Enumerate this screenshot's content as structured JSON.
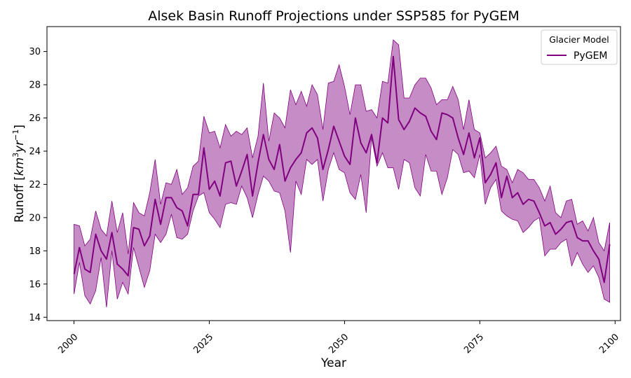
{
  "chart_data": {
    "type": "line",
    "title": "Alsek Basin Runoff Projections under SSP585 for PyGEM",
    "xlabel": "Year",
    "ylabel_main": "Runoff [",
    "ylabel_unit": "km",
    "ylabel_unit_sup": "3",
    "ylabel_unit2": "yr",
    "ylabel_unit2_sup": "−1",
    "ylabel_close": "]",
    "xlim": [
      1995,
      2101
    ],
    "ylim": [
      13.8,
      31.5
    ],
    "xticks": [
      2000,
      2025,
      2050,
      2075,
      2100
    ],
    "yticks": [
      14,
      16,
      18,
      20,
      22,
      24,
      26,
      28,
      30
    ],
    "grid": false,
    "legend_title": "Glacier Model",
    "legend_position": "top-right",
    "color": "#800080",
    "band_color": "#a040a0",
    "series": [
      {
        "name": "PyGEM",
        "x": [
          2000,
          2001,
          2002,
          2003,
          2004,
          2005,
          2006,
          2007,
          2008,
          2009,
          2010,
          2011,
          2012,
          2013,
          2014,
          2015,
          2016,
          2017,
          2018,
          2019,
          2020,
          2021,
          2022,
          2023,
          2024,
          2025,
          2026,
          2027,
          2028,
          2029,
          2030,
          2031,
          2032,
          2033,
          2034,
          2035,
          2036,
          2037,
          2038,
          2039,
          2040,
          2041,
          2042,
          2043,
          2044,
          2045,
          2046,
          2047,
          2048,
          2049,
          2050,
          2051,
          2052,
          2053,
          2054,
          2055,
          2056,
          2057,
          2058,
          2059,
          2060,
          2061,
          2062,
          2063,
          2064,
          2065,
          2066,
          2067,
          2068,
          2069,
          2070,
          2071,
          2072,
          2073,
          2074,
          2075,
          2076,
          2077,
          2078,
          2079,
          2080,
          2081,
          2082,
          2083,
          2084,
          2085,
          2086,
          2087,
          2088,
          2089,
          2090,
          2091,
          2092,
          2093,
          2094,
          2095,
          2096,
          2097,
          2098,
          2099
        ],
        "mean": [
          16.6,
          18.2,
          16.9,
          16.7,
          19.0,
          18.0,
          17.5,
          19.1,
          17.2,
          16.9,
          16.5,
          19.4,
          19.3,
          18.3,
          18.9,
          21.1,
          19.6,
          21.2,
          21.2,
          20.6,
          20.4,
          19.5,
          21.4,
          21.4,
          24.2,
          21.7,
          22.2,
          21.3,
          23.3,
          23.4,
          21.9,
          22.8,
          23.8,
          21.3,
          23.3,
          25.0,
          23.5,
          22.9,
          24.4,
          22.2,
          23.0,
          23.5,
          23.9,
          25.1,
          25.4,
          24.8,
          22.9,
          24.1,
          25.5,
          24.6,
          23.7,
          23.2,
          26.0,
          24.5,
          23.9,
          25.0,
          23.3,
          26.0,
          25.7,
          29.7,
          25.9,
          25.3,
          25.8,
          26.6,
          26.3,
          26.1,
          25.2,
          24.7,
          26.3,
          26.2,
          26.0,
          24.8,
          23.8,
          25.1,
          23.6,
          24.8,
          22.1,
          22.6,
          23.3,
          21.2,
          22.5,
          21.2,
          21.5,
          20.8,
          21.1,
          21.0,
          20.3,
          19.5,
          19.7,
          19.0,
          19.3,
          19.7,
          19.8,
          18.8,
          18.6,
          18.6,
          18.0,
          17.5,
          16.1,
          18.4
        ],
        "upper": [
          19.6,
          19.5,
          18.3,
          18.7,
          20.4,
          19.3,
          18.9,
          21.0,
          19.1,
          20.3,
          17.8,
          20.9,
          20.3,
          20.1,
          21.5,
          23.5,
          20.8,
          22.1,
          22.0,
          22.9,
          21.4,
          21.8,
          23.1,
          23.4,
          26.1,
          25.1,
          25.2,
          24.2,
          25.6,
          24.9,
          25.2,
          25.0,
          25.4,
          23.6,
          24.9,
          28.1,
          24.6,
          26.3,
          26.0,
          25.4,
          27.7,
          26.8,
          27.6,
          26.7,
          28.0,
          27.4,
          25.3,
          28.1,
          28.2,
          29.2,
          27.9,
          26.2,
          28.0,
          28.0,
          26.4,
          26.5,
          26.0,
          28.2,
          28.1,
          30.7,
          30.4,
          27.2,
          27.2,
          28.0,
          28.4,
          28.4,
          27.8,
          26.8,
          27.1,
          27.1,
          27.9,
          27.1,
          25.3,
          27.1,
          25.3,
          25.1,
          23.6,
          23.9,
          24.3,
          23.1,
          22.9,
          22.1,
          22.9,
          22.7,
          22.3,
          22.3,
          21.8,
          21.0,
          21.9,
          20.3,
          20.0,
          21.0,
          21.1,
          19.6,
          19.8,
          19.2,
          20.0,
          18.5,
          18.0,
          19.7
        ],
        "lower": [
          15.4,
          17.3,
          15.3,
          14.8,
          15.6,
          17.6,
          14.6,
          18.0,
          15.1,
          16.1,
          15.4,
          18.2,
          17.0,
          15.8,
          16.8,
          19.0,
          18.5,
          19.0,
          20.2,
          18.8,
          18.7,
          19.0,
          20.4,
          21.3,
          21.5,
          20.3,
          19.9,
          19.4,
          20.8,
          20.9,
          20.8,
          21.9,
          21.2,
          20.0,
          21.4,
          22.5,
          22.2,
          21.6,
          21.5,
          20.4,
          17.9,
          22.2,
          21.4,
          23.5,
          23.2,
          23.5,
          21.0,
          22.9,
          23.9,
          22.9,
          22.7,
          21.5,
          21.1,
          22.6,
          20.3,
          24.8,
          23.1,
          23.9,
          23.0,
          23.0,
          21.7,
          23.5,
          23.3,
          21.8,
          21.3,
          23.8,
          22.8,
          22.8,
          21.4,
          22.4,
          24.1,
          23.8,
          22.7,
          22.8,
          22.4,
          23.8,
          20.8,
          21.8,
          22.3,
          20.4,
          20.1,
          19.9,
          19.8,
          19.1,
          19.4,
          19.8,
          20.0,
          17.7,
          18.1,
          18.1,
          18.5,
          18.7,
          17.1,
          17.9,
          17.2,
          16.7,
          17.1,
          16.4,
          15.1,
          14.9
        ]
      }
    ]
  }
}
